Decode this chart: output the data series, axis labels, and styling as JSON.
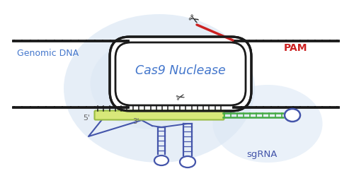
{
  "bg": "#ffffff",
  "blob_color": "#dce8f5",
  "dna_color": "#1a1a1a",
  "pam_color": "#cc2222",
  "cas9_label": "Cas9 Nuclease",
  "cas9_color": "#4477cc",
  "genomic_label": "Genomic DNA",
  "genomic_color": "#4477cc",
  "pam_label": "PAM",
  "pam_label_color": "#cc2222",
  "sgrna_label": "sgRNA",
  "sgrna_color": "#4455aa",
  "prime5": "5'",
  "prime3": "3'",
  "prime_color": "#666666",
  "guide_fill": "#d8e87a",
  "guide_edge": "#99bb44",
  "stem_color": "#44aa44",
  "loop_color": "#4455aa",
  "scissors_color": "#111111",
  "white": "#ffffff"
}
